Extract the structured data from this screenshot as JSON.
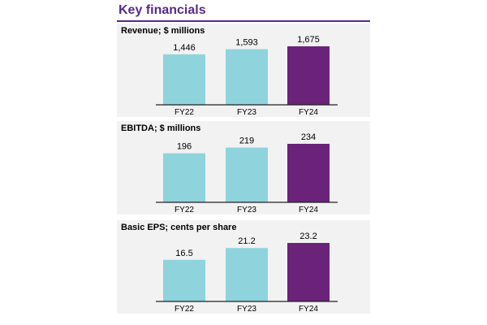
{
  "header": {
    "title": "Key financials"
  },
  "colors": {
    "accent": "#5b2a86",
    "bar_past": "#8fd3dd",
    "bar_current": "#6a2378",
    "axis": "#222222",
    "panel_bg": "#f2f2f2"
  },
  "chart_data": [
    {
      "type": "bar",
      "title": "Revenue; $ millions",
      "categories": [
        "FY22",
        "FY23",
        "FY24"
      ],
      "values": [
        1446,
        1593,
        1675
      ],
      "value_labels": [
        "1,446",
        "1,593",
        "1,675"
      ],
      "highlight": "FY24",
      "grid": false,
      "legend": "none"
    },
    {
      "type": "bar",
      "title": "EBITDA; $ millions",
      "categories": [
        "FY22",
        "FY23",
        "FY24"
      ],
      "values": [
        196,
        219,
        234
      ],
      "value_labels": [
        "196",
        "219",
        "234"
      ],
      "highlight": "FY24",
      "grid": false,
      "legend": "none"
    },
    {
      "type": "bar",
      "title": "Basic EPS; cents per share",
      "categories": [
        "FY22",
        "FY23",
        "FY24"
      ],
      "values": [
        16.5,
        21.2,
        23.2
      ],
      "value_labels": [
        "16.5",
        "21.2",
        "23.2"
      ],
      "highlight": "FY24",
      "grid": false,
      "legend": "none"
    }
  ]
}
